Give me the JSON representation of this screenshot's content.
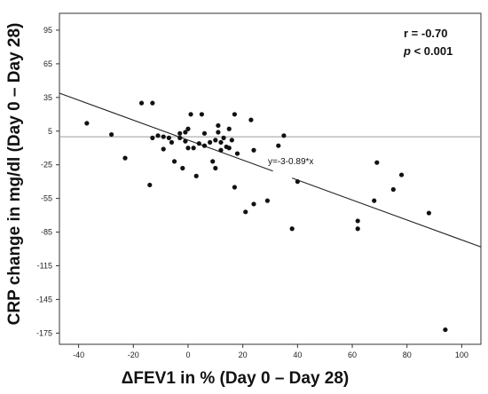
{
  "chart_data": {
    "type": "scatter",
    "title": "",
    "xlabel": "ΔFEV1 in % (Day 0 – Day 28)",
    "ylabel": "CRP change in mg/dl (Day 0 – Day 28)",
    "xlim": [
      -47,
      107
    ],
    "ylim": [
      -185,
      110
    ],
    "xticks": [
      -40,
      -20,
      0,
      20,
      40,
      60,
      80,
      100
    ],
    "yticks": [
      95,
      65,
      35,
      5,
      -25,
      -55,
      -85,
      -115,
      -145,
      -175
    ],
    "reference_line_y": 0,
    "regression": {
      "label": "y=-3-0.89*x",
      "intercept": -3,
      "slope": -0.89
    },
    "annotations": {
      "r": "r = -0.70",
      "p_italic": "p",
      "p_rest": " < 0.001"
    },
    "points": [
      [
        -37,
        12
      ],
      [
        -28,
        2
      ],
      [
        -23,
        -19
      ],
      [
        -17,
        30
      ],
      [
        -14,
        -43
      ],
      [
        -13,
        30
      ],
      [
        -13,
        -1
      ],
      [
        -11,
        1
      ],
      [
        -9,
        0
      ],
      [
        -9,
        -11
      ],
      [
        -7,
        -1
      ],
      [
        -6,
        -5
      ],
      [
        -5,
        -22
      ],
      [
        -3,
        3
      ],
      [
        -3,
        -1
      ],
      [
        -2,
        -28
      ],
      [
        -1,
        4
      ],
      [
        -1,
        -4
      ],
      [
        0,
        7
      ],
      [
        0,
        -10
      ],
      [
        1,
        20
      ],
      [
        2,
        -10
      ],
      [
        3,
        -35
      ],
      [
        4,
        -6
      ],
      [
        5,
        20
      ],
      [
        6,
        3
      ],
      [
        6,
        -8
      ],
      [
        8,
        -5
      ],
      [
        9,
        -22
      ],
      [
        10,
        -28
      ],
      [
        10,
        -3
      ],
      [
        11,
        10
      ],
      [
        11,
        4
      ],
      [
        12,
        -12
      ],
      [
        12,
        -5
      ],
      [
        13,
        -1
      ],
      [
        14,
        -9
      ],
      [
        15,
        -10
      ],
      [
        15,
        7
      ],
      [
        16,
        -3
      ],
      [
        17,
        20
      ],
      [
        17,
        -45
      ],
      [
        18,
        -15
      ],
      [
        21,
        -67
      ],
      [
        23,
        15
      ],
      [
        24,
        -60
      ],
      [
        24,
        -12
      ],
      [
        29,
        -57
      ],
      [
        33,
        -8
      ],
      [
        35,
        1
      ],
      [
        38,
        -82
      ],
      [
        40,
        -40
      ],
      [
        62,
        -75
      ],
      [
        62,
        -82
      ],
      [
        68,
        -57
      ],
      [
        69,
        -23
      ],
      [
        75,
        -47
      ],
      [
        78,
        -34
      ],
      [
        88,
        -68
      ],
      [
        94,
        -172
      ]
    ]
  }
}
